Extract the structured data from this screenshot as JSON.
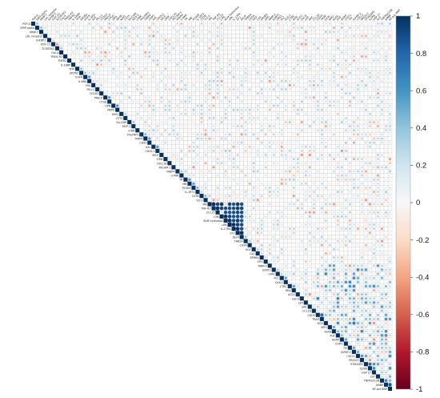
{
  "chart_data": {
    "type": "heatmap",
    "style": "corrplot upper triangle, circles sized/colored by correlation",
    "labels": [
      "PSP-D",
      "SIRP-alpha",
      "MMP-7",
      "LDL receptor",
      "IGFBP-1",
      "GDF-15",
      "SCGB3A2",
      "Gal-4",
      "TRAIL-R2",
      "TNFR2",
      "IL-18BP",
      "TFPI",
      "SPON2",
      "EGFR",
      "IL-6RA",
      "FAS",
      "PD-L2",
      "CD163",
      "PRELP",
      "CTSD",
      "OPN",
      "MEPE",
      "KIM1",
      "CST5",
      "Ep-CAM",
      "MCP-1",
      "LTBR",
      "PGLYRP1",
      "TIMP4",
      "CD93",
      "AXL",
      "CHI3L1",
      "SELE",
      "GRN",
      "CXCL16",
      "PECAM-1",
      "FABP4",
      "U-PAR",
      "TR",
      "MB",
      "PCSK9",
      "IL-1RT1",
      "CSTB",
      "TLT-2",
      "PAI",
      "TNF-R1",
      "CCL15",
      "t-PA",
      "BLM hydrolase",
      "uPA",
      "IL-17RA",
      "ST2",
      "SELP",
      "THBS4",
      "CA5A",
      "HGF",
      "CA1",
      "EPHB4",
      "OPG",
      "MMP-2",
      "SORT1",
      "CPA1",
      "PLC",
      "DLK-1",
      "CTRC",
      "REN",
      "ACE2",
      "Gal-9",
      "LEP",
      "SRC",
      "CCL16",
      "CDH5",
      "TRAP",
      "DCN",
      "MPO",
      "KLK6",
      "PGF",
      "AGRP",
      "CHIT1",
      "TM",
      "IGFBP-2",
      "CXCL1",
      "PRSS27",
      "ITGB1BP2",
      "IL2RA",
      "HSP 27",
      "SCF",
      "TNFRSF13B",
      "AMBP",
      "NT-pro BNP"
    ],
    "value_range": [
      -1,
      1
    ],
    "colorbar": {
      "ticks": [
        "1",
        "0.8",
        "0.6",
        "0.4",
        "0.2",
        "0",
        "-0.2",
        "-0.4",
        "-0.6",
        "-0.8",
        "-1"
      ],
      "colors": [
        "#053061",
        "#2166ac",
        "#4393c3",
        "#92c5de",
        "#d1e5f0",
        "#f7f7f7",
        "#fddbc7",
        "#f4a582",
        "#d6604d",
        "#b2182b",
        "#67001f"
      ]
    },
    "grid": true,
    "legend": "right"
  }
}
